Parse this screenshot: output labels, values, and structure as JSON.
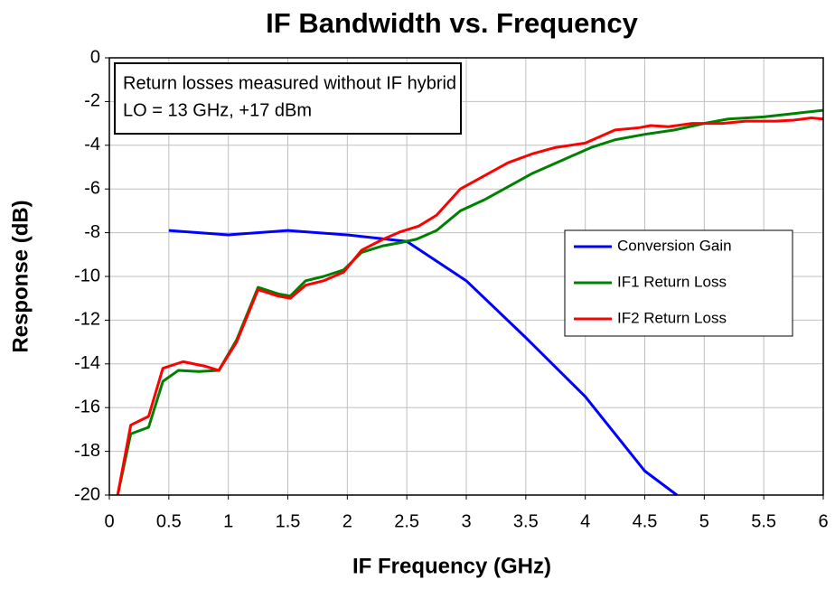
{
  "chart_data": {
    "type": "line",
    "title": "IF Bandwidth vs. Frequency",
    "x_label": "IF Frequency (GHz)",
    "y_label": "Response (dB)",
    "annotation": [
      "Return losses measured without IF hybrid",
      "LO = 13 GHz, +17 dBm"
    ],
    "xlim": [
      0,
      6
    ],
    "xticks": [
      0,
      0.5,
      1,
      1.5,
      2,
      2.5,
      3,
      3.5,
      4,
      4.5,
      5,
      5.5,
      6
    ],
    "ylim": [
      -20,
      0
    ],
    "yticks": [
      0,
      -2,
      -4,
      -6,
      -8,
      -10,
      -12,
      -14,
      -16,
      -18,
      -20
    ],
    "grid": true,
    "legend": "right",
    "series": [
      {
        "name": "Conversion Gain",
        "color": "#0000ff",
        "x": [
          0.5,
          1,
          1.5,
          2,
          2.5,
          3,
          3.5,
          4,
          4.5,
          4.77
        ],
        "values": [
          -7.9,
          -8.1,
          -7.9,
          -8.1,
          -8.4,
          -10.2,
          -12.8,
          -15.5,
          -18.9,
          -20
        ]
      },
      {
        "name": "IF1 Return Loss",
        "color": "#008000",
        "x": [
          0.07,
          0.18,
          0.33,
          0.45,
          0.58,
          0.75,
          0.92,
          1.07,
          1.25,
          1.42,
          1.52,
          1.65,
          1.8,
          1.97,
          2.12,
          2.3,
          2.45,
          2.58,
          2.75,
          2.95,
          3.15,
          3.35,
          3.55,
          3.8,
          4.05,
          4.25,
          4.5,
          4.75,
          5.0,
          5.2,
          5.5,
          5.75,
          6.0
        ],
        "values": [
          -20,
          -17.2,
          -16.9,
          -14.8,
          -14.3,
          -14.35,
          -14.3,
          -12.9,
          -10.5,
          -10.8,
          -10.9,
          -10.2,
          -10.0,
          -9.7,
          -8.9,
          -8.6,
          -8.45,
          -8.3,
          -7.9,
          -7.0,
          -6.5,
          -5.9,
          -5.3,
          -4.7,
          -4.1,
          -3.75,
          -3.5,
          -3.3,
          -3.0,
          -2.8,
          -2.7,
          -2.55,
          -2.4
        ]
      },
      {
        "name": "IF2 Return Loss",
        "color": "#ff0000",
        "x": [
          0.07,
          0.18,
          0.33,
          0.45,
          0.62,
          0.8,
          0.92,
          1.07,
          1.25,
          1.42,
          1.52,
          1.65,
          1.8,
          1.97,
          2.12,
          2.3,
          2.45,
          2.6,
          2.75,
          2.95,
          3.15,
          3.35,
          3.55,
          3.75,
          4.0,
          4.25,
          4.45,
          4.55,
          4.7,
          4.9,
          5.15,
          5.35,
          5.6,
          5.75,
          5.9,
          6.0
        ],
        "values": [
          -20,
          -16.8,
          -16.4,
          -14.2,
          -13.9,
          -14.1,
          -14.3,
          -13.0,
          -10.6,
          -10.9,
          -11.0,
          -10.4,
          -10.2,
          -9.8,
          -8.8,
          -8.3,
          -7.95,
          -7.7,
          -7.2,
          -6.0,
          -5.4,
          -4.8,
          -4.4,
          -4.1,
          -3.9,
          -3.3,
          -3.2,
          -3.1,
          -3.15,
          -3.0,
          -3.0,
          -2.9,
          -2.9,
          -2.85,
          -2.75,
          -2.8
        ]
      }
    ]
  }
}
